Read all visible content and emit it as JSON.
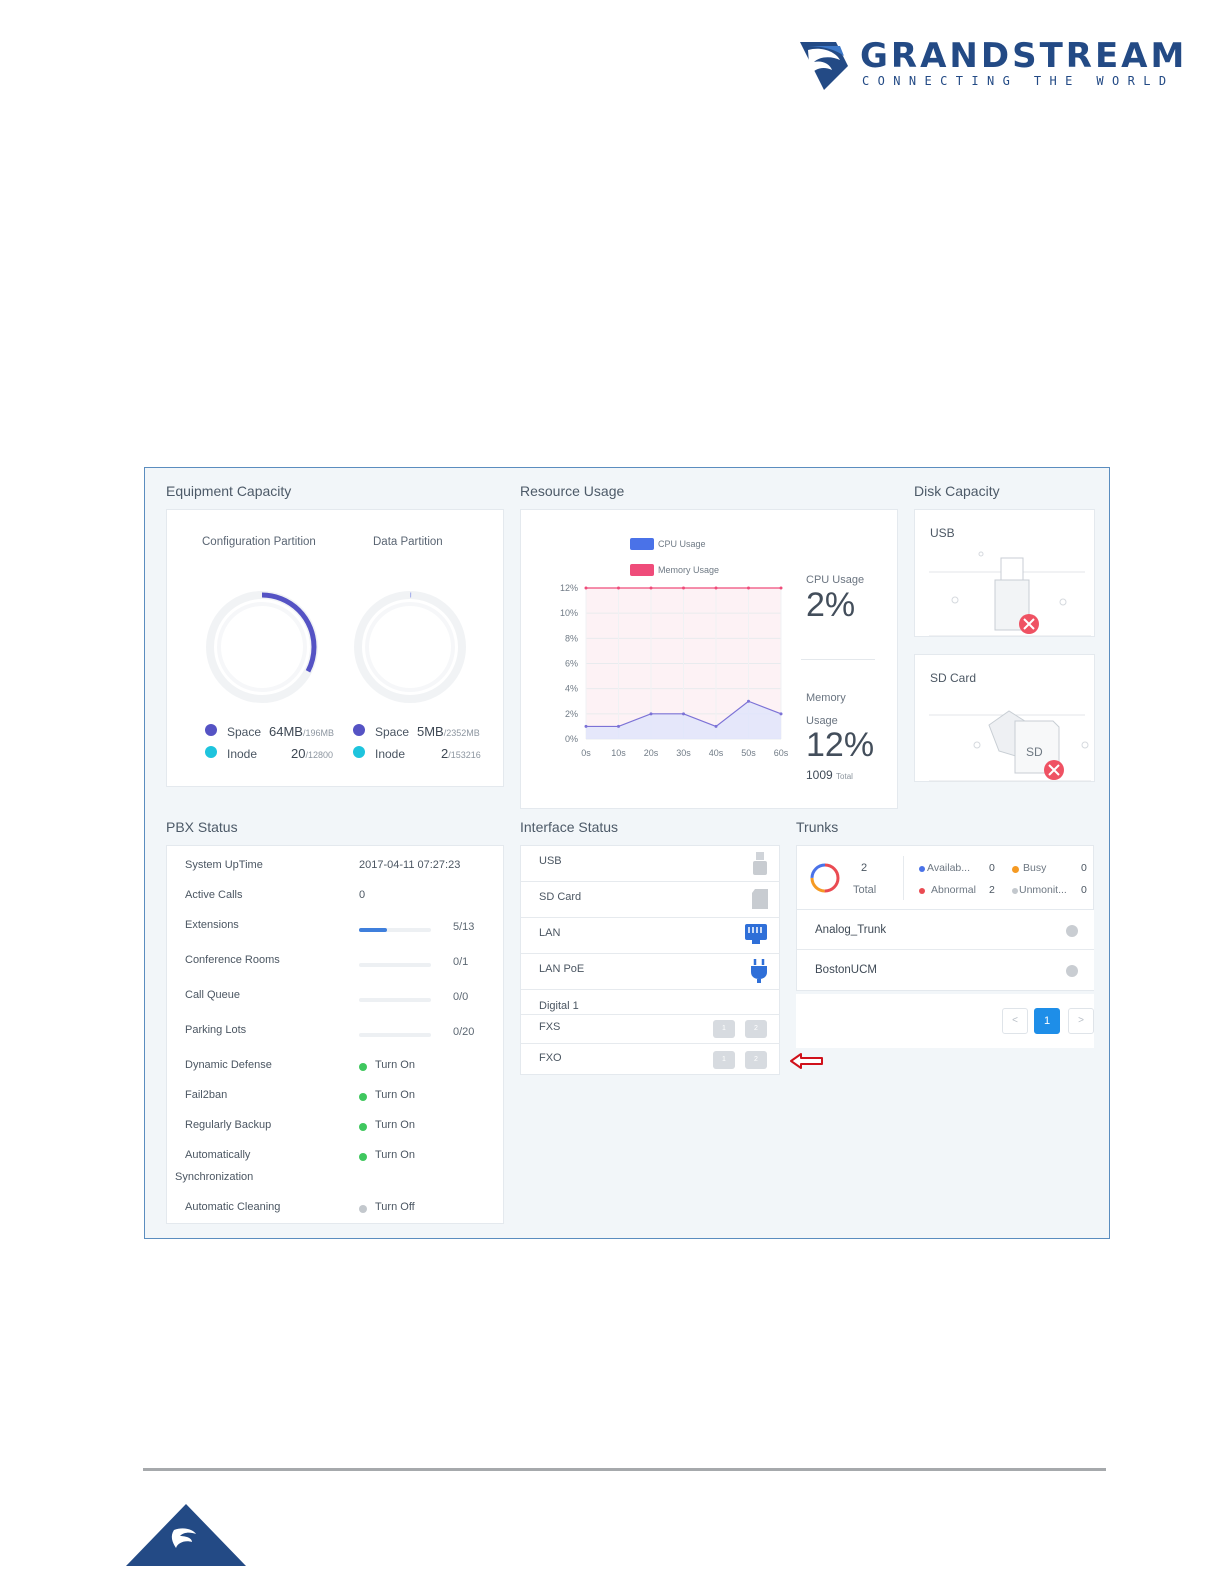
{
  "header": {
    "brand": "GRANDSTREAM",
    "tagline": "CONNECTING THE WORLD"
  },
  "equipment": {
    "title": "Equipment Capacity",
    "config_partition": {
      "label": "Configuration Partition",
      "space_label": "Space",
      "space_value": "64MB",
      "space_total": "/196MB",
      "inode_label": "Inode",
      "inode_value": "20",
      "inode_total": "/12800",
      "space_fraction": 0.327
    },
    "data_partition": {
      "label": "Data Partition",
      "space_label": "Space",
      "space_value": "5MB",
      "space_total": "/2352MB",
      "inode_label": "Inode",
      "inode_value": "2",
      "inode_total": "/153216",
      "space_fraction": 0.002
    },
    "colors": {
      "space": "#5553c4",
      "inode": "#1ec4dd"
    }
  },
  "resource": {
    "title": "Resource Usage",
    "legend_cpu": "CPU Usage",
    "legend_memory": "Memory Usage",
    "cpu_label": "CPU Usage",
    "cpu_value": "2%",
    "memory_label_1": "Memory",
    "memory_label_2": "Usage",
    "memory_value": "12%",
    "memory_total": "1009",
    "memory_total_unit": "Total",
    "colors": {
      "cpu": "#4a72e8",
      "memory": "#ef4c7a"
    }
  },
  "chart_data": {
    "type": "line",
    "x": [
      "0s",
      "10s",
      "20s",
      "30s",
      "40s",
      "50s",
      "60s"
    ],
    "yticks": [
      "0%",
      "2%",
      "4%",
      "6%",
      "8%",
      "10%",
      "12%"
    ],
    "ylim": [
      0,
      12
    ],
    "series": [
      {
        "name": "CPU Usage",
        "x": [
          0,
          10,
          20,
          30,
          40,
          50,
          60
        ],
        "values": [
          1,
          1,
          2,
          2,
          1,
          3,
          2
        ]
      },
      {
        "name": "Memory Usage",
        "x": [
          0,
          10,
          20,
          30,
          40,
          50,
          60
        ],
        "values": [
          12,
          12,
          12,
          12,
          12,
          12,
          12
        ]
      }
    ]
  },
  "disk": {
    "title": "Disk Capacity",
    "usb_label": "USB",
    "sd_label": "SD Card",
    "sd_icon_text": "SD"
  },
  "pbx": {
    "title": "PBX Status",
    "rows": [
      {
        "label": "System UpTime",
        "value": "2017-04-11 07:27:23"
      },
      {
        "label": "Active Calls",
        "value": "0"
      },
      {
        "label": "Extensions",
        "count": "5/13",
        "fraction": 0.3846
      },
      {
        "label": "Conference Rooms",
        "count": "0/1",
        "fraction": 0
      },
      {
        "label": "Call Queue",
        "count": "0/0",
        "fraction": 0
      },
      {
        "label": "Parking Lots",
        "count": "0/20",
        "fraction": 0
      },
      {
        "label": "Dynamic Defense",
        "status": "Turn On"
      },
      {
        "label": "Fail2ban",
        "status": "Turn On"
      },
      {
        "label": "Regularly Backup",
        "status": "Turn On"
      },
      {
        "label": "Automatically",
        "label2": "Synchronization",
        "status": "Turn On"
      },
      {
        "label": "Automatic Cleaning",
        "status": "Turn Off"
      }
    ],
    "colors": {
      "on": "#3fc75e",
      "off": "#c3c8cd",
      "bar": "#3f7fdc"
    }
  },
  "interface": {
    "title": "Interface Status",
    "rows": [
      "USB",
      "SD Card",
      "LAN",
      "LAN PoE",
      "Digital 1",
      "FXS",
      "FXO"
    ],
    "port_labels": [
      "1",
      "2"
    ]
  },
  "trunks": {
    "title": "Trunks",
    "total_value": "2",
    "total_label": "Total",
    "available_label": "Availab...",
    "available_value": "0",
    "busy_label": "Busy",
    "busy_value": "0",
    "abnormal_label": "Abnormal",
    "abnormal_value": "2",
    "unmonitored_label": "Unmonit...",
    "unmonitored_value": "0",
    "rows": [
      "Analog_Trunk",
      "BostonUCM"
    ],
    "page": "1",
    "prev": "<",
    "next": ">",
    "colors": {
      "available": "#4a72e8",
      "busy": "#f59a23",
      "abnormal": "#ea4b52",
      "unmonitored": "#c3c8cd"
    }
  }
}
